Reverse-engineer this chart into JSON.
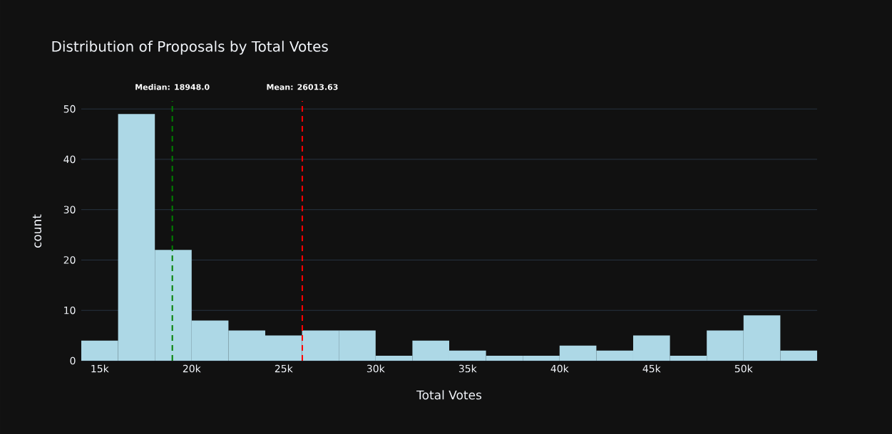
{
  "chart_data": {
    "type": "histogram",
    "title": "Distribution of Proposals by Total Votes",
    "xlabel": "Total Votes",
    "ylabel": "count",
    "bins": [
      14000,
      16000,
      18000,
      20000,
      22000,
      24000,
      26000,
      28000,
      30000,
      32000,
      34000,
      36000,
      38000,
      40000,
      42000,
      44000,
      46000,
      48000,
      50000,
      52000,
      54000
    ],
    "values": [
      4,
      49,
      22,
      8,
      6,
      5,
      6,
      6,
      1,
      4,
      2,
      1,
      1,
      3,
      2,
      5,
      1,
      6,
      9,
      2
    ],
    "color": "#add8e6",
    "xlim": [
      14000,
      54000
    ],
    "ylim": [
      0,
      51.58
    ],
    "xticks": [
      {
        "value": 15000,
        "label": "15k"
      },
      {
        "value": 20000,
        "label": "20k"
      },
      {
        "value": 25000,
        "label": "25k"
      },
      {
        "value": 30000,
        "label": "30k"
      },
      {
        "value": 35000,
        "label": "35k"
      },
      {
        "value": 40000,
        "label": "40k"
      },
      {
        "value": 45000,
        "label": "45k"
      },
      {
        "value": 50000,
        "label": "50k"
      }
    ],
    "yticks": [
      0,
      10,
      20,
      30,
      40,
      50
    ],
    "grid": "y",
    "ref_lines": [
      {
        "axis": "x",
        "value": 18948,
        "label": "Median: 18948.0",
        "color": "#008000",
        "line_style": "dashed"
      },
      {
        "axis": "x",
        "value": 26013.63,
        "label": "Mean: 26013.63",
        "color": "#ff0000",
        "line_style": "dashed"
      }
    ]
  }
}
